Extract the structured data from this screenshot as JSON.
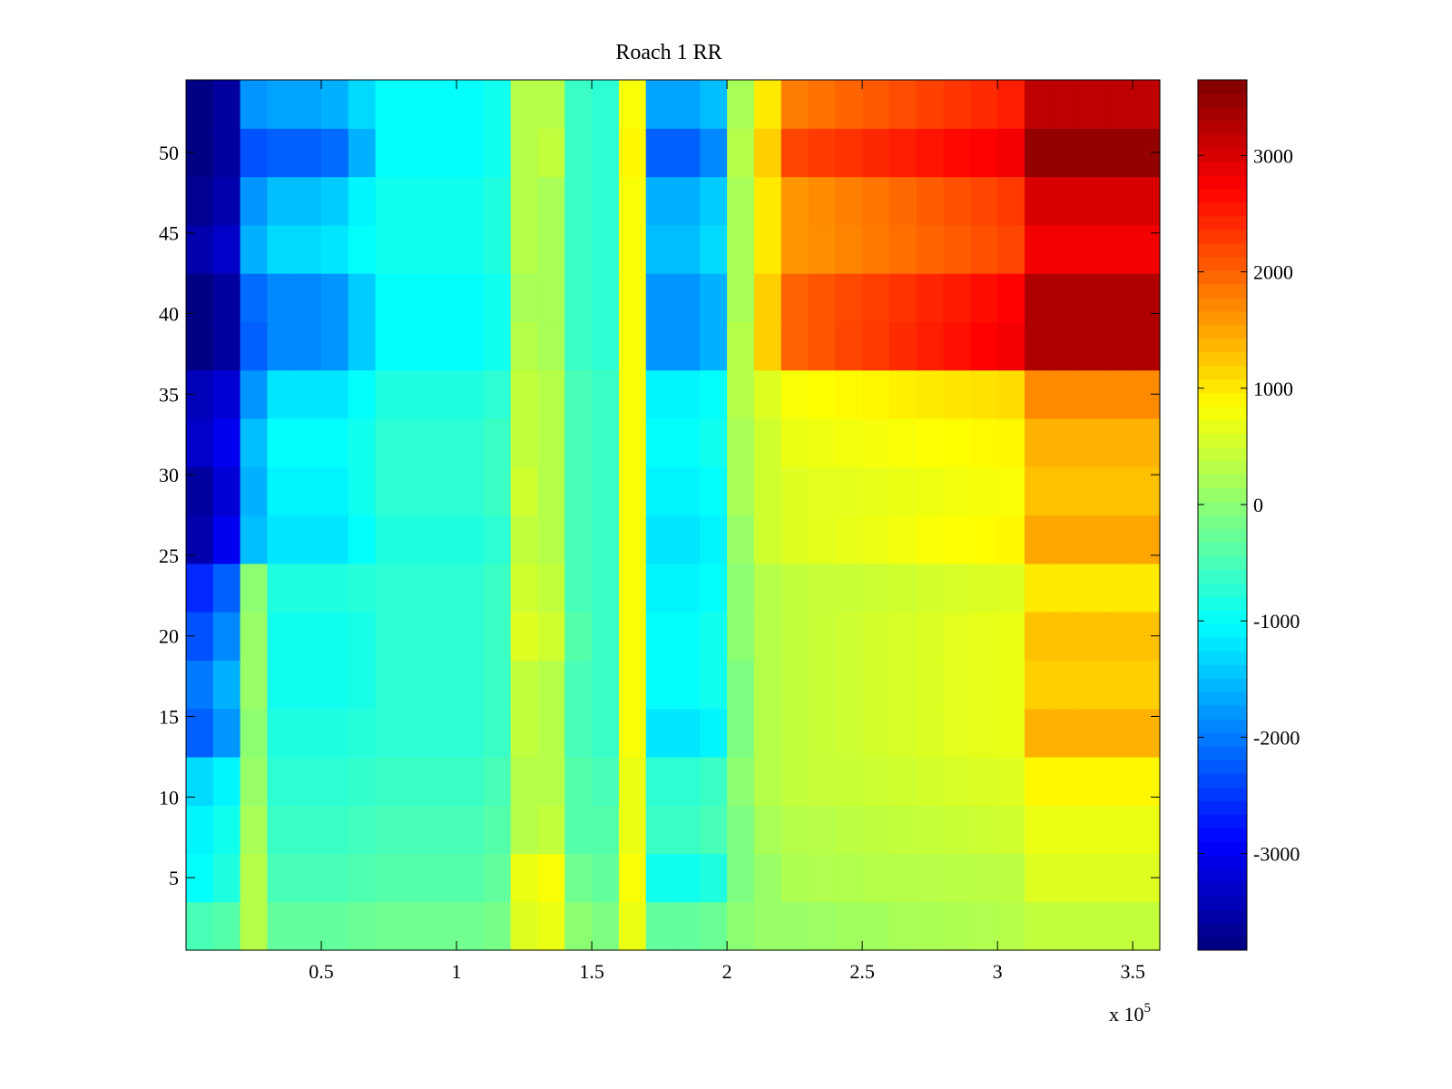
{
  "chart_data": {
    "type": "heatmap",
    "title": "Roach 1 RR",
    "xlabel": "",
    "ylabel": "",
    "x_multiplier_label": "x 10",
    "x_multiplier_exponent": "5",
    "xlim": [
      0,
      360000
    ],
    "ylim": [
      0.5,
      54.5
    ],
    "clim": [
      -3830,
      3650
    ],
    "colormap": "jet",
    "xticks": [
      50000,
      100000,
      150000,
      200000,
      250000,
      300000,
      350000
    ],
    "xtick_labels": [
      "0.5",
      "1",
      "1.5",
      "2",
      "2.5",
      "3",
      "3.5"
    ],
    "yticks": [
      5,
      10,
      15,
      20,
      25,
      30,
      35,
      40,
      45,
      50
    ],
    "ytick_labels": [
      "5",
      "10",
      "15",
      "20",
      "25",
      "30",
      "35",
      "40",
      "45",
      "50"
    ],
    "colorbar_ticks": [
      -3000,
      -2000,
      -1000,
      0,
      1000,
      2000,
      3000
    ],
    "colorbar_tick_labels": [
      "-3000",
      "-2000",
      "-1000",
      "0",
      "1000",
      "2000",
      "3000"
    ],
    "x_bin_width": 10000,
    "row_band_size": 3,
    "note_grid": "values[i][j]: row band i (rows 3i+1..3i+3, bottom to top), column j (x from j*10000 to (j+1)*10000)",
    "values": [
      [
        -500,
        -400,
        300,
        -300,
        -300,
        -300,
        -250,
        -200,
        -200,
        -200,
        -200,
        -150,
        600,
        700,
        0,
        -100,
        700,
        -300,
        -300,
        -250,
        0,
        100,
        100,
        120,
        150,
        170,
        200,
        220,
        250,
        270,
        300,
        400,
        400,
        400,
        400,
        400
      ],
      [
        -1000,
        -800,
        300,
        -500,
        -500,
        -500,
        -450,
        -400,
        -400,
        -400,
        -400,
        -300,
        700,
        800,
        -200,
        -300,
        800,
        -900,
        -900,
        -800,
        -100,
        100,
        250,
        270,
        280,
        300,
        300,
        320,
        330,
        340,
        350,
        600,
        600,
        600,
        600,
        600
      ],
      [
        -1100,
        -900,
        200,
        -600,
        -600,
        -600,
        -550,
        -500,
        -500,
        -500,
        -500,
        -400,
        300,
        400,
        -400,
        -400,
        700,
        -600,
        -600,
        -500,
        -100,
        200,
        300,
        320,
        350,
        380,
        400,
        420,
        450,
        480,
        500,
        700,
        700,
        700,
        700,
        700
      ],
      [
        -1300,
        -1100,
        100,
        -700,
        -700,
        -700,
        -650,
        -600,
        -600,
        -600,
        -600,
        -500,
        300,
        300,
        -400,
        -500,
        700,
        -700,
        -700,
        -600,
        0,
        300,
        400,
        430,
        450,
        480,
        500,
        530,
        550,
        580,
        600,
        900,
        900,
        900,
        900,
        900
      ],
      [
        -2200,
        -1800,
        0,
        -800,
        -800,
        -800,
        -750,
        -700,
        -700,
        -700,
        -700,
        -600,
        400,
        300,
        -500,
        -600,
        800,
        -1200,
        -1200,
        -1100,
        -100,
        300,
        400,
        440,
        480,
        520,
        550,
        590,
        630,
        670,
        700,
        1400,
        1400,
        1400,
        1400,
        1400
      ],
      [
        -2000,
        -1600,
        100,
        -900,
        -900,
        -900,
        -850,
        -700,
        -700,
        -700,
        -700,
        -600,
        400,
        300,
        -500,
        -600,
        800,
        -1000,
        -1000,
        -900,
        -100,
        300,
        400,
        440,
        480,
        520,
        550,
        590,
        630,
        670,
        700,
        1200,
        1200,
        1200,
        1200,
        1200
      ],
      [
        -2300,
        -1900,
        100,
        -900,
        -900,
        -900,
        -850,
        -700,
        -700,
        -700,
        -700,
        -600,
        600,
        500,
        -400,
        -600,
        800,
        -1000,
        -1000,
        -900,
        0,
        300,
        400,
        440,
        480,
        520,
        550,
        590,
        630,
        670,
        700,
        1300,
        1300,
        1300,
        1300,
        1300
      ],
      [
        -2600,
        -2200,
        0,
        -800,
        -800,
        -800,
        -750,
        -700,
        -700,
        -700,
        -700,
        -600,
        500,
        400,
        -500,
        -600,
        800,
        -1100,
        -1100,
        -1000,
        0,
        300,
        400,
        430,
        450,
        480,
        500,
        530,
        550,
        580,
        600,
        1000,
        1000,
        1000,
        1000,
        1000
      ],
      [
        -3500,
        -3000,
        -1500,
        -1200,
        -1200,
        -1200,
        -1000,
        -800,
        -800,
        -800,
        -800,
        -700,
        400,
        300,
        -500,
        -600,
        800,
        -1200,
        -1200,
        -1100,
        100,
        500,
        600,
        640,
        680,
        710,
        750,
        790,
        830,
        860,
        900,
        1500,
        1500,
        1500,
        1500,
        1500
      ],
      [
        -3600,
        -3200,
        -1600,
        -1100,
        -1100,
        -1100,
        -900,
        -700,
        -700,
        -700,
        -700,
        -600,
        500,
        300,
        -500,
        -600,
        800,
        -1100,
        -1100,
        -1000,
        200,
        500,
        600,
        630,
        650,
        680,
        700,
        730,
        750,
        780,
        800,
        1300,
        1300,
        1300,
        1300,
        1300
      ],
      [
        -3300,
        -3000,
        -1500,
        -1000,
        -1000,
        -1000,
        -900,
        -700,
        -700,
        -700,
        -700,
        -600,
        400,
        300,
        -500,
        -600,
        800,
        -1000,
        -1000,
        -900,
        200,
        500,
        700,
        730,
        750,
        780,
        800,
        830,
        850,
        880,
        900,
        1400,
        1400,
        1400,
        1400,
        1400
      ],
      [
        -3400,
        -3200,
        -1800,
        -1200,
        -1200,
        -1200,
        -1000,
        -800,
        -800,
        -800,
        -800,
        -700,
        400,
        300,
        -500,
        -600,
        800,
        -1100,
        -1100,
        -1000,
        300,
        600,
        800,
        840,
        880,
        910,
        950,
        990,
        1030,
        1060,
        1100,
        1700,
        1700,
        1700,
        1700,
        1700
      ],
      [
        -3800,
        -3600,
        -2200,
        -1900,
        -1900,
        -1800,
        -1400,
        -1000,
        -1000,
        -1000,
        -1000,
        -900,
        300,
        200,
        -600,
        -700,
        800,
        -1800,
        -1800,
        -1600,
        300,
        1200,
        2000,
        2100,
        2200,
        2300,
        2400,
        2500,
        2600,
        2700,
        2800,
        3300,
        3300,
        3300,
        3300,
        3300
      ],
      [
        -3800,
        -3600,
        -2100,
        -1900,
        -1900,
        -1800,
        -1400,
        -1000,
        -1000,
        -1000,
        -1000,
        -900,
        200,
        200,
        -600,
        -700,
        800,
        -1800,
        -1800,
        -1600,
        200,
        1200,
        2000,
        2090,
        2180,
        2260,
        2350,
        2440,
        2530,
        2610,
        2700,
        3300,
        3300,
        3300,
        3300,
        3300
      ],
      [
        -3500,
        -3300,
        -1600,
        -1300,
        -1300,
        -1200,
        -1000,
        -900,
        -900,
        -900,
        -900,
        -800,
        300,
        200,
        -600,
        -700,
        800,
        -1500,
        -1500,
        -1300,
        200,
        1000,
        1600,
        1680,
        1750,
        1830,
        1900,
        1980,
        2050,
        2130,
        2200,
        2800,
        2800,
        2800,
        2800,
        2800
      ],
      [
        -3700,
        -3500,
        -1800,
        -1500,
        -1500,
        -1400,
        -1100,
        -900,
        -900,
        -900,
        -900,
        -800,
        300,
        200,
        -600,
        -700,
        800,
        -1600,
        -1600,
        -1400,
        200,
        1000,
        1600,
        1690,
        1780,
        1860,
        1950,
        2040,
        2130,
        2210,
        2300,
        3000,
        3000,
        3000,
        3000,
        3000
      ],
      [
        -3800,
        -3600,
        -2300,
        -2200,
        -2200,
        -2100,
        -1600,
        -1000,
        -1000,
        -1000,
        -1000,
        -900,
        300,
        400,
        -600,
        -700,
        900,
        -2200,
        -2200,
        -1900,
        300,
        1200,
        2200,
        2280,
        2350,
        2430,
        2500,
        2580,
        2650,
        2730,
        2800,
        3500,
        3500,
        3500,
        3500,
        3500
      ],
      [
        -3800,
        -3600,
        -1800,
        -1700,
        -1700,
        -1600,
        -1300,
        -1000,
        -1000,
        -1000,
        -1000,
        -900,
        300,
        300,
        -600,
        -700,
        800,
        -1700,
        -1700,
        -1500,
        200,
        1000,
        1800,
        1890,
        1980,
        2060,
        2150,
        2240,
        2330,
        2410,
        2500,
        3200,
        3200,
        3200,
        3200,
        3200
      ]
    ]
  }
}
